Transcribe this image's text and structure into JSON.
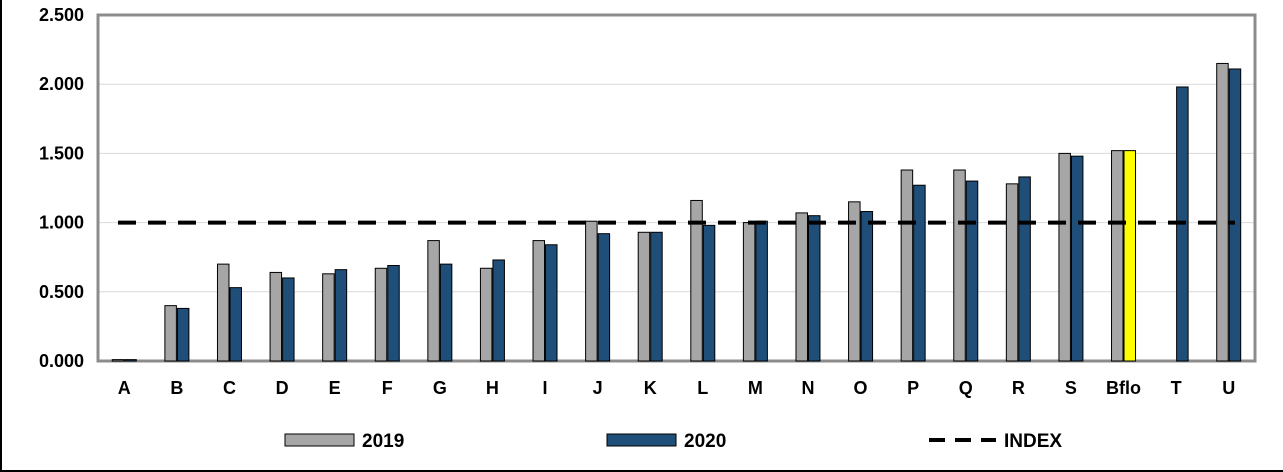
{
  "chart_data": {
    "type": "bar",
    "title": "",
    "xlabel": "",
    "ylabel": "",
    "ylim": [
      0,
      2.5
    ],
    "yticks": [
      "0.000",
      "0.500",
      "1.000",
      "1.500",
      "2.000",
      "2.500"
    ],
    "ytick_values": [
      0,
      0.5,
      1.0,
      1.5,
      2.0,
      2.5
    ],
    "categories": [
      "A",
      "B",
      "C",
      "D",
      "E",
      "F",
      "G",
      "H",
      "I",
      "J",
      "K",
      "L",
      "M",
      "N",
      "O",
      "P",
      "Q",
      "R",
      "S",
      "Bflo",
      "T",
      "U"
    ],
    "series": [
      {
        "name": "2019",
        "color": "#a6a6a6",
        "values": [
          0.01,
          0.4,
          0.7,
          0.64,
          0.63,
          0.67,
          0.87,
          0.67,
          0.87,
          1.01,
          0.93,
          1.16,
          1.0,
          1.07,
          1.15,
          1.38,
          1.38,
          1.28,
          1.5,
          1.52,
          null,
          2.15
        ]
      },
      {
        "name": "2020",
        "color": "#1f4e79",
        "values": [
          0.01,
          0.38,
          0.53,
          0.6,
          0.66,
          0.69,
          0.7,
          0.73,
          0.84,
          0.92,
          0.93,
          0.98,
          1.01,
          1.05,
          1.08,
          1.27,
          1.3,
          1.33,
          1.48,
          1.52,
          1.98,
          2.11
        ]
      }
    ],
    "highlight": {
      "category": "Bflo",
      "series": "2020",
      "color": "#ffff00"
    },
    "reference_line": {
      "name": "INDEX",
      "value": 1.0,
      "style": "dashed",
      "color": "#000000"
    },
    "legend": {
      "placement": "bottom",
      "entries": [
        "2019",
        "2020",
        "INDEX"
      ]
    },
    "grid": {
      "horizontal": true,
      "color": "#d9d9d9"
    }
  }
}
